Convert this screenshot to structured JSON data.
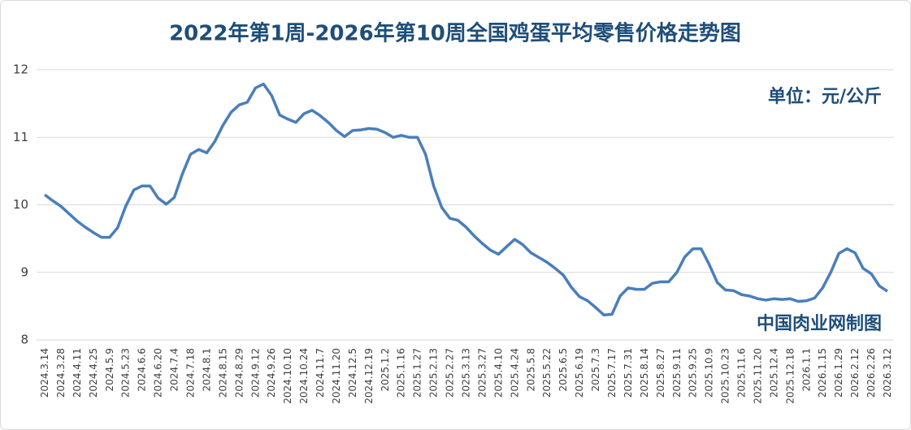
{
  "chart_data": {
    "type": "line",
    "title": "2022年第1周-2026年第10周全国鸡蛋平均零售价格走势图",
    "unit_note": "单位：元/公斤",
    "source_note": "中国肉业网制图",
    "categories": [
      "2024.3.14",
      null,
      "2024.3.28",
      null,
      "2024.4.11",
      null,
      "2024.4.25",
      null,
      "2024.5.9",
      null,
      "2024.5.23",
      null,
      "2024.6.6",
      null,
      "2024.6.20",
      null,
      "2024.7.4",
      null,
      "2024.7.18",
      null,
      "2024.8.1",
      null,
      "2024.8.15",
      null,
      "2024.8.29",
      null,
      "2024.9.12",
      null,
      "2024.9.26",
      null,
      "2024.10.10",
      null,
      "2024.10.24",
      null,
      "2024.11.7",
      null,
      "2024.11.20",
      null,
      "2024.12.5",
      null,
      "2024.12.19",
      null,
      "2025.1.2",
      null,
      "2025.1.16",
      null,
      "2025.1.27",
      null,
      "2025.2.13",
      null,
      "2025.2.27",
      null,
      "2025.3.13",
      null,
      "2025.3.27",
      null,
      "2025.4.10",
      null,
      "2025.4.24",
      null,
      "2025.5.8",
      null,
      "2025.5.22",
      null,
      "2025.6.5",
      null,
      "2025.6.19",
      null,
      "2025.7.3",
      null,
      "2025.7.17",
      null,
      "2025.7.31",
      null,
      "2025.8.14",
      null,
      "2025.8.27",
      null,
      "2025.9.11",
      null,
      "2025.9.25",
      null,
      "2025.10.9",
      null,
      "2025.10.23",
      null,
      "2025.11.6",
      null,
      "2025.11.20",
      null,
      "2025.12.4",
      null,
      "2025.12.18",
      null,
      "2026.1.1",
      null,
      "2026.1.15",
      null,
      "2026.1.29",
      null,
      "2026.2.12",
      null,
      "2026.2.26",
      null,
      "2026.3.12"
    ],
    "values": [
      10.15,
      10.06,
      9.98,
      9.87,
      9.76,
      9.67,
      9.59,
      9.52,
      9.52,
      9.66,
      9.98,
      10.22,
      10.28,
      10.28,
      10.1,
      10.01,
      10.11,
      10.46,
      10.75,
      10.82,
      10.77,
      10.94,
      11.18,
      11.37,
      11.48,
      11.52,
      11.73,
      11.79,
      11.62,
      11.33,
      11.27,
      11.22,
      11.35,
      11.4,
      11.32,
      11.22,
      11.1,
      11.01,
      11.1,
      11.11,
      11.13,
      11.12,
      11.07,
      11.0,
      11.03,
      11.0,
      11.0,
      10.75,
      10.28,
      9.96,
      9.8,
      9.77,
      9.67,
      9.54,
      9.43,
      9.33,
      9.27,
      9.38,
      9.49,
      9.41,
      9.29,
      9.22,
      9.15,
      9.06,
      8.96,
      8.78,
      8.64,
      8.58,
      8.48,
      8.37,
      8.38,
      8.65,
      8.77,
      8.75,
      8.75,
      8.84,
      8.86,
      8.86,
      9.0,
      9.23,
      9.35,
      9.35,
      9.12,
      8.85,
      8.74,
      8.73,
      8.67,
      8.65,
      8.61,
      8.59,
      8.61,
      8.6,
      8.61,
      8.57,
      8.58,
      8.62,
      8.77,
      9.0,
      9.28,
      9.35,
      9.29,
      9.06,
      8.98,
      8.8,
      8.72
    ],
    "color": "#4a7ebb",
    "ylim": [
      8,
      12
    ],
    "yticks": [
      8,
      9,
      10,
      11,
      12
    ],
    "grid": true
  }
}
